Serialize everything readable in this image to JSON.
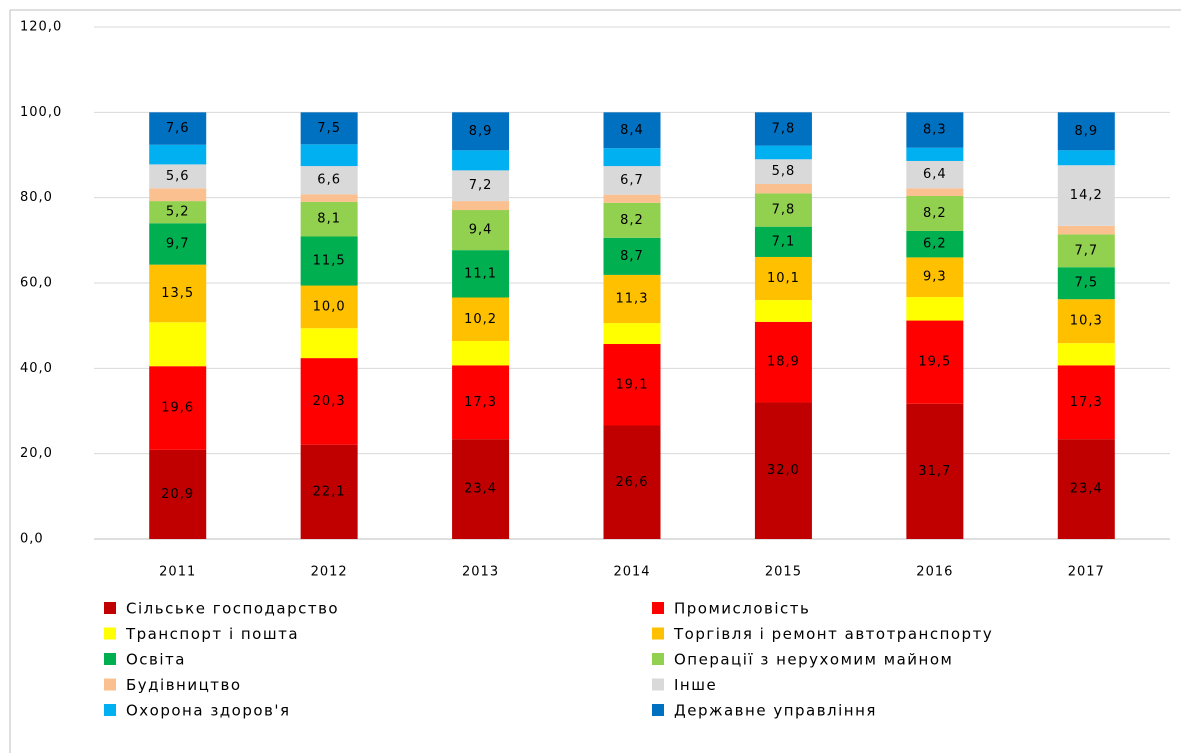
{
  "chart_data": {
    "type": "bar",
    "stacked": true,
    "categories": [
      "2011",
      "2012",
      "2013",
      "2014",
      "2015",
      "2016",
      "2017"
    ],
    "ylim": [
      0,
      120
    ],
    "yticks": [
      {
        "value": 0,
        "label": "0,0"
      },
      {
        "value": 20,
        "label": "20,0"
      },
      {
        "value": 40,
        "label": "40,0"
      },
      {
        "value": 60,
        "label": "60,0"
      },
      {
        "value": 80,
        "label": "80,0"
      },
      {
        "value": 100,
        "label": "100,0"
      },
      {
        "value": 120,
        "label": "120,0"
      }
    ],
    "grid": true,
    "series": [
      {
        "name": "Сільське господарство",
        "color": "#c00000",
        "values": [
          20.9,
          22.1,
          23.4,
          26.6,
          32.0,
          31.7,
          23.4
        ],
        "value_labels": [
          "20,9",
          "22,1",
          "23,4",
          "26,6",
          "32,0",
          "31,7",
          "23,4"
        ]
      },
      {
        "name": "Промисловість",
        "color": "#ff0000",
        "values": [
          19.6,
          20.3,
          17.3,
          19.1,
          18.9,
          19.5,
          17.3
        ],
        "value_labels": [
          "19,6",
          "20,3",
          "17,3",
          "19,1",
          "18,9",
          "19,5",
          "17,3"
        ]
      },
      {
        "name": "Транспорт і пошта",
        "color": "#ffff00",
        "values": [
          10.3,
          7.0,
          5.7,
          4.9,
          5.1,
          5.5,
          5.2
        ]
      },
      {
        "name": "Торгівля і ремонт автотранспорту",
        "color": "#ffc000",
        "values": [
          13.5,
          10.0,
          10.2,
          11.3,
          10.1,
          9.3,
          10.3
        ],
        "value_labels": [
          "13,5",
          "10,0",
          "10,2",
          "11,3",
          "10,1",
          "9,3",
          "10,3"
        ]
      },
      {
        "name": "Освіта",
        "color": "#00b050",
        "values": [
          9.7,
          11.5,
          11.1,
          8.7,
          7.1,
          6.2,
          7.5
        ],
        "value_labels": [
          "9,7",
          "11,5",
          "11,1",
          "8,7",
          "7,1",
          "6,2",
          "7,5"
        ]
      },
      {
        "name": "Операції з нерухомим майном",
        "color": "#92d050",
        "values": [
          5.2,
          8.1,
          9.4,
          8.2,
          7.8,
          8.2,
          7.7
        ],
        "value_labels": [
          "5,2",
          "8,1",
          "9,4",
          "8,2",
          "7,8",
          "8,2",
          "7,7"
        ]
      },
      {
        "name": "Будівництво",
        "color": "#fac090",
        "values": [
          3.0,
          1.8,
          2.1,
          1.9,
          2.2,
          1.8,
          2.0
        ]
      },
      {
        "name": "Інше",
        "color": "#d9d9d9",
        "values": [
          5.6,
          6.6,
          7.2,
          6.7,
          5.8,
          6.4,
          14.2
        ],
        "value_labels": [
          "5,6",
          "6,6",
          "7,2",
          "6,7",
          "5,8",
          "6,4",
          "14,2"
        ]
      },
      {
        "name": "Охорона здоров'я",
        "color": "#00b0f0",
        "values": [
          4.6,
          5.1,
          4.7,
          4.2,
          3.2,
          3.1,
          3.5
        ]
      },
      {
        "name": "Державне управління",
        "color": "#0070c0",
        "values": [
          7.6,
          7.5,
          8.9,
          8.4,
          7.8,
          8.3,
          8.9
        ],
        "value_labels": [
          "7,6",
          "7,5",
          "8,9",
          "8,4",
          "7,8",
          "8,3",
          "8,9"
        ]
      }
    ]
  }
}
